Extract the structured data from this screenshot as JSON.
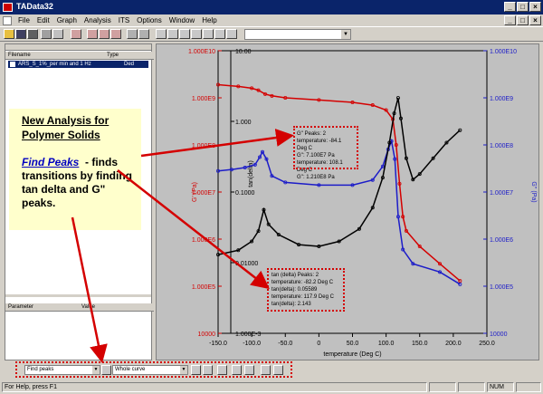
{
  "window": {
    "title": "TAData32"
  },
  "menu": [
    "File",
    "Edit",
    "Graph",
    "Analysis",
    "ITS",
    "Options",
    "Window",
    "Help"
  ],
  "file_panel": {
    "col_filename": "Filename",
    "col_type": "Type",
    "file_name": "ARS_S_1%_per min and 1 Hz",
    "file_type": "Ded"
  },
  "param_panel": {
    "col_parameter": "Parameter",
    "col_value": "Value"
  },
  "callout": {
    "title_line1": "New Analysis for",
    "title_line2": "Polymer Solids",
    "link": "Find Peaks",
    "text": "- finds transitions by finding tan delta and G\" peaks."
  },
  "annotation_g": {
    "l1": "G'' Peaks: 2",
    "l2": "temperature: -84.1 Deg C",
    "l3": "G'': 7.100E7 Pa",
    "l4": "temperature: 108.1 Deg C",
    "l5": "G'': 1.210E8 Pa"
  },
  "annotation_tan": {
    "l1": "tan (delta) Peaks: 2",
    "l2": "temperature: -82.2 Deg C",
    "l3": "tan(delta): 0.05589",
    "l4": "temperature: 117.9 Deg C",
    "l5": "tan(delta): 2.143"
  },
  "bottom": {
    "analysis": "Find peaks",
    "range": "Whole curve"
  },
  "status": {
    "help": "For Help, press F1",
    "num": "NUM"
  },
  "colors": {
    "g_prime": "#d40000",
    "g_double_prime": "#1c1cc8",
    "tan_delta": "#000000",
    "highlight": "#d40000"
  },
  "chart_data": {
    "type": "line",
    "xlabel": "temperature (Deg C)",
    "xlim": [
      -150,
      250
    ],
    "x_ticks": [
      "-150.0",
      "-100.0",
      "-50.0",
      "0",
      "50.0",
      "100.0",
      "150.0",
      "200.0",
      "250.0"
    ],
    "left_axis": {
      "label": "G' (Pa)",
      "scale": "log",
      "range": [
        10000,
        10000000000
      ],
      "ticks": [
        "1.000E10",
        "1.000E9",
        "1.000E8",
        "1.000E7",
        "1.000E6",
        "1.000E5",
        "10000"
      ]
    },
    "tan_axis": {
      "label": "tan(delta)",
      "scale": "log",
      "range": [
        0.001,
        10
      ],
      "ticks": [
        "10.00",
        "1.000",
        "0.1000",
        "0.01000",
        "1.000E-3"
      ]
    },
    "right_axis": {
      "label": "G'' (Pa)",
      "scale": "log",
      "range": [
        10000,
        10000000000
      ],
      "ticks": [
        "1.000E10",
        "1.000E9",
        "1.000E8",
        "1.000E7",
        "1.000E6",
        "1.000E5",
        "10000"
      ]
    },
    "series": [
      {
        "name": "G'",
        "axis": "left",
        "x": [
          -150,
          -120,
          -100,
          -90,
          -80,
          -70,
          -50,
          0,
          50,
          80,
          100,
          110,
          115,
          120,
          125,
          130,
          150,
          180,
          210
        ],
        "y": [
          1900000000.0,
          1750000000.0,
          1600000000.0,
          1450000000.0,
          1200000000.0,
          1100000000.0,
          1000000000.0,
          900000000.0,
          800000000.0,
          700000000.0,
          550000000.0,
          350000000.0,
          100000000.0,
          15000000.0,
          3000000.0,
          1500000.0,
          700000.0,
          300000.0,
          130000.0
        ]
      },
      {
        "name": "G''",
        "axis": "right",
        "x": [
          -150,
          -130,
          -110,
          -95,
          -88,
          -84,
          -78,
          -70,
          -50,
          0,
          50,
          80,
          95,
          103,
          108,
          113,
          118,
          125,
          140,
          180,
          210
        ],
        "y": [
          28000000.0,
          30000000.0,
          33000000.0,
          38000000.0,
          55000000.0,
          71000000.0,
          50000000.0,
          22000000.0,
          16000000.0,
          14000000.0,
          14000000.0,
          18000000.0,
          35000000.0,
          80000000.0,
          121000000.0,
          50000000.0,
          3000000.0,
          600000.0,
          300000.0,
          200000.0,
          110000.0
        ]
      },
      {
        "name": "tan(delta)",
        "axis": "tan",
        "x": [
          -150,
          -120,
          -100,
          -90,
          -82,
          -75,
          -60,
          -30,
          0,
          30,
          60,
          80,
          95,
          105,
          112,
          117.9,
          122,
          130,
          140,
          150,
          170,
          190,
          210
        ],
        "y": [
          0.013,
          0.015,
          0.02,
          0.028,
          0.056,
          0.035,
          0.025,
          0.018,
          0.017,
          0.02,
          0.03,
          0.06,
          0.16,
          0.5,
          1.3,
          2.143,
          1.1,
          0.3,
          0.15,
          0.18,
          0.3,
          0.5,
          0.75
        ]
      }
    ]
  }
}
